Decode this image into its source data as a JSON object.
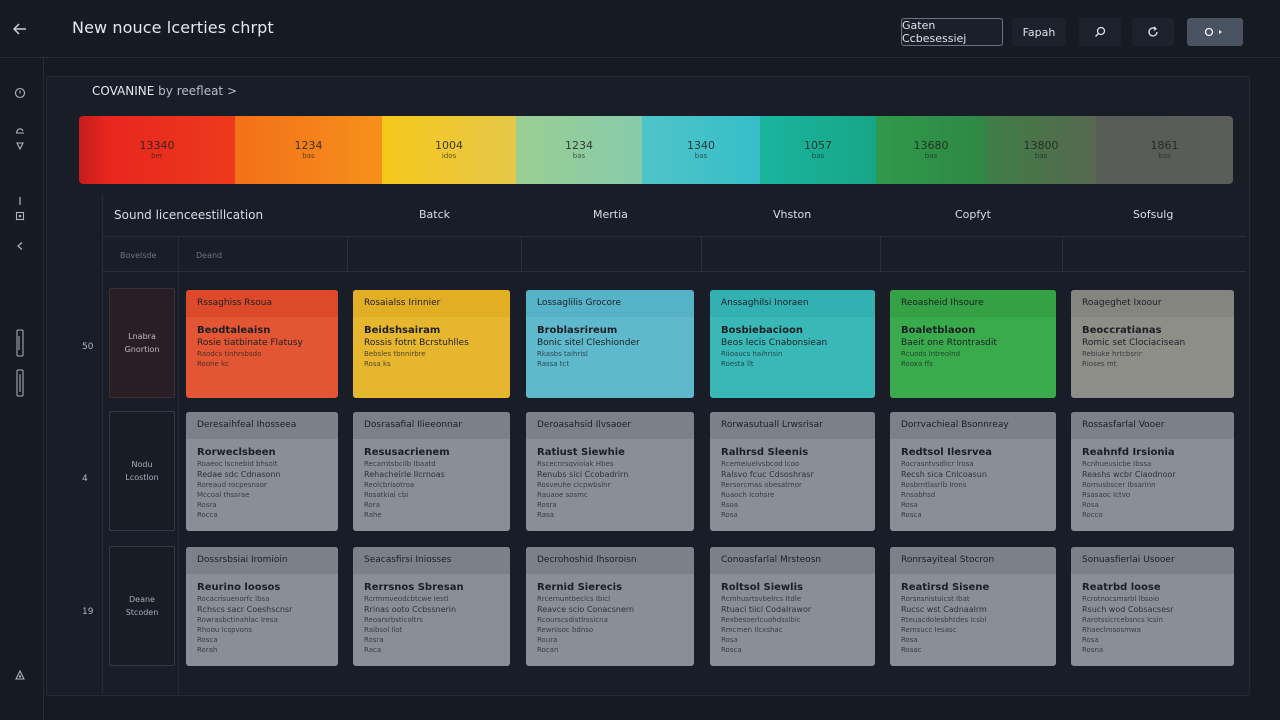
{
  "header": {
    "title": "New nouce lcerties chrpt",
    "btn_outlined": "Gaten Ccbesessiej",
    "btn_ghost": "Fapah",
    "icon_search": "search-icon",
    "icon_refresh": "refresh-icon",
    "icon_primary": "toggle-icon",
    "back_icon": "back-arrow-icon"
  },
  "rail": {
    "icons": [
      "home-icon",
      "cloud-icon",
      "bookmark-icon",
      "info-icon",
      "tag-icon",
      "chevron-left-icon",
      "print-icon",
      "clipboard-icon",
      "settings-icon"
    ]
  },
  "panel": {
    "heading": "COVANINE",
    "heading_sub": "by reefleat",
    "heading_arrow": ">"
  },
  "spectrum": {
    "segments": [
      {
        "value": "13340",
        "unit": "ber",
        "color": "#e8261e"
      },
      {
        "value": "1234",
        "unit": "bas",
        "color": "#f2771b"
      },
      {
        "value": "1004",
        "unit": "idos",
        "color": "#f1c21e"
      },
      {
        "value": "1234",
        "unit": "bas",
        "color": "#8fcb9c"
      },
      {
        "value": "1340",
        "unit": "bas",
        "color": "#3fc1c6"
      },
      {
        "value": "1057",
        "unit": "bas",
        "color": "#1bae96"
      },
      {
        "value": "13680",
        "unit": "bas",
        "color": "#2c8f48"
      },
      {
        "value": "13800",
        "unit": "bas",
        "color": "#4a7048"
      },
      {
        "value": "1861",
        "unit": "bas",
        "color": "#555a56"
      }
    ]
  },
  "columns": {
    "first": "Sound licenceestillcation",
    "headers": [
      "Batck",
      "Mertia",
      "Vhston",
      "Copfyt",
      "Sofsulg"
    ],
    "sub_headers": [
      "Bovelsde",
      "Deand"
    ]
  },
  "rows": [
    {
      "num": "50",
      "label1": "Lnabra",
      "label2": "Gnortion"
    },
    {
      "num": "4",
      "label1": "Nodu",
      "label2": "Lcostlon"
    },
    {
      "num": "19",
      "label1": "Deane",
      "label2": "Stcoden"
    }
  ],
  "cards": {
    "row1": [
      {
        "top": "Rssaghiss Rsoua",
        "title": "Beodtaleaisn",
        "line": "Rosie tiatbinate Flatusy",
        "line2": "Raodcs tinhrsbsdo",
        "line3": "Roone kc"
      },
      {
        "top": "Rosaialss Irinnier",
        "title": "Beidshsairam",
        "line": "Rossis fotnt Bcrstuhlles",
        "line2": "Bebsles  tbnnirbre",
        "line3": "Rosa ks"
      },
      {
        "top": "Lossaglilis Grocore",
        "title": "Broblasrireum",
        "line": "Bonic sitel Cleshionder",
        "line2": "Rkasbs taihrisl",
        "line3": "Rassa tct"
      },
      {
        "top": "Anssaghilsi Inoraen",
        "title": "Bosbiebacioon",
        "line": "Beos lecis Cnabonsiean",
        "line2": "Riioaucs haihrisin",
        "line3": "Roesta llt"
      },
      {
        "top": "Reoasheid Ihsoure",
        "title": "Boaletblaoon",
        "line": "Baeit one Rtontrasdit",
        "line2": "Rcuods lntreolnd",
        "line3": "Rooxa ffs"
      },
      {
        "top": "Roageghet Ixoour",
        "title": "Beoccratianas",
        "line": "Romic set Clociacisean",
        "line2": "Rebiuke hrtcbsrir",
        "line3": "Rioses mt"
      }
    ],
    "row2": [
      {
        "top": "Deresaihfeal Ihosseea",
        "title": "Rorweclsbeen",
        "line": "Roaeoc lscnebid  bhsolt",
        "line2": "Redae sdc Cdnasonn",
        "line3": "Roreaud rocpesnsor",
        "line4": "Mccoal thssrae",
        "line5": "Rosra",
        "line6": "Rocca"
      },
      {
        "top": "Dosrasafial Ilieeonnar",
        "title": "Resusacrienem",
        "line": "Recarntsbcilb  Ibaatd",
        "line2": "Rehacheirle Ilcrnoas",
        "line3": "Reolcbrisotroa",
        "line4": "Rosatkiai cbi",
        "line5": "Rora",
        "line6": "Rahe"
      },
      {
        "top": "Deroasahsid Ilvsaoer",
        "title": "Ratiust Siewhie",
        "line": "Rscecnrsqvioiak  Hbes",
        "line2": "Renubs sici Ccobadrirn",
        "line3": "Rosveuhe cicpwbslnr",
        "line4": "Rauaoe  sosmc",
        "line5": "Rosra",
        "line6": "Rasa"
      },
      {
        "top": "Rorwasutuall Lrwsrisar",
        "title": "Ralhrsd Sleenis",
        "line": "Rcemeiuelvsbcod  lcoo",
        "line2": "Ralsvo fcuc Cdsoshrasr",
        "line3": "Rersorcmas obesatmor",
        "line4": "Ruaoch Icohsre",
        "line5": "Rsoa",
        "line6": "Rosa"
      },
      {
        "top": "Dorrvachieal Bsonnreay",
        "title": "Redtsol Ilesrvea",
        "line": "Rocrasntvsdlicr  lrosa",
        "line2": "Recsh  sica Cnlcoasun",
        "line3": "Rosbrntlasrlb Irons",
        "line4": "Rnsabhsd",
        "line5": "Rosa",
        "line6": "Rosca"
      },
      {
        "top": "Rossasfarlal Vooer",
        "title": "Reahnfd Irsionia",
        "line": "Rcnhueusicbe  Ibssa",
        "line2": "Reashs wcbr Ciaodnoor",
        "line3": "Rornusbscer Ibsarinn",
        "line4": "Rsasaoc Ictvo",
        "line5": "Rosa",
        "line6": "Rocco"
      }
    ],
    "row3": [
      {
        "top": "Dossrsbsiai Iromioin",
        "title": "Reurino loosos",
        "line": "Rocacrisuenorfc  lbsa",
        "line2": "Rchscs sacr Coeshscnsr",
        "line3": "Rowrasbctinahlac Iresa",
        "line4": "Rhoou Icspvons",
        "line5": "Rosca",
        "line6": "Rorah"
      },
      {
        "top": "Seacasfirsi Iniosses",
        "title": "Rerrsnos Sbresan",
        "line": "Rcrmrnveodcbtcwe Iestl",
        "line2": "Rrinas ooto Ccbssnerin",
        "line3": "Reoarsrbsticoltrs",
        "line4": "Raibsol llot",
        "line5": "Rosra",
        "line6": "Raca"
      },
      {
        "top": "Decrohoshid Ihsoroisn",
        "title": "Rernid Sierecis",
        "line": "Rrcernuntbeclcs Ibicl",
        "line2": "Reavce scio Conacsnern",
        "line3": "Rcourscsdistlrssicna",
        "line4": "Rewnisoc bdnso",
        "line5": "Roura",
        "line6": "Rocan"
      },
      {
        "top": "Conoasfarlal Mrsteosn",
        "title": "Roltsol Siewlis",
        "line": "Rcmhusrtsvbelrcs Itdle",
        "line2": "Rtuaci tiicl Codalrawor",
        "line3": "Rexbesoerlcuohdsslbic",
        "line4": "Rmcmen Ilcxshac",
        "line5": "Rosa",
        "line6": "Rosca"
      },
      {
        "top": "Ronrsayiteal Stocron",
        "title": "Reatirsd Sisene",
        "line": "Rorsnsnistuicst  Ibat",
        "line2": "Rucsc wst Cadnaalrm",
        "line3": "Rteuacdolesbhtdes Icsbl",
        "line4": "Remsucc Iesasc",
        "line5": "Rosa",
        "line6": "Rosac"
      },
      {
        "top": "Sonuasfierlai Usooer",
        "title": "Reatrbd loose",
        "line": "Rcrotnocsmsrbl  lbsoio",
        "line2": "Rsuch  wod Cobsacsesr",
        "line3": "Rarotssicrcebsncs Icsin",
        "line4": "Rhaeclmsosmwa",
        "line5": "Rosa",
        "line6": "Rosna"
      }
    ]
  },
  "colors": {
    "background": "#151a23",
    "card_red": "#e35634",
    "card_yellow": "#e6b62e",
    "card_blue": "#4bb2c8",
    "card_teal": "#37b6b8",
    "card_green": "#36a84a",
    "card_gray": "#8a8e96"
  }
}
